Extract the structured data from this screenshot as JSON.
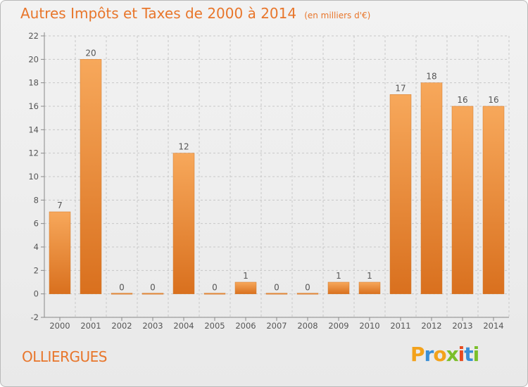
{
  "chart_data": {
    "type": "bar",
    "title": "Autres Impôts et Taxes de 2000 à 2014",
    "unit": "(en milliers d'€)",
    "categories": [
      "2000",
      "2001",
      "2002",
      "2003",
      "2004",
      "2005",
      "2006",
      "2007",
      "2008",
      "2009",
      "2010",
      "2011",
      "2012",
      "2013",
      "2014"
    ],
    "values": [
      7,
      20,
      0,
      0,
      12,
      0,
      1,
      0,
      0,
      1,
      1,
      17,
      18,
      16,
      16
    ],
    "value_labels": [
      "7",
      "20",
      "0",
      "0",
      "12",
      "0",
      "1",
      "0",
      "0",
      "1",
      "1",
      "17",
      "18",
      "16",
      "16"
    ],
    "ylim": [
      -2,
      22
    ],
    "y_ticks": [
      -2,
      0,
      2,
      4,
      6,
      8,
      10,
      12,
      14,
      16,
      18,
      20,
      22
    ],
    "grid": true,
    "bar_color_top": "#f7a85b",
    "bar_color_bottom": "#d9701e"
  },
  "footer": {
    "location": "OLLIERGUES",
    "logo_letters": [
      "P",
      "r",
      "o",
      "x",
      "i",
      "t",
      "i"
    ],
    "logo_colors": [
      "#f3a21b",
      "#3a8fd6",
      "#f3a21b",
      "#7bbf2a",
      "#e84b1f",
      "#3a8fd6",
      "#7bbf2a"
    ]
  },
  "colors": {
    "accent": "#e8762b",
    "axis": "#888888",
    "grid": "#c8c8c8"
  }
}
